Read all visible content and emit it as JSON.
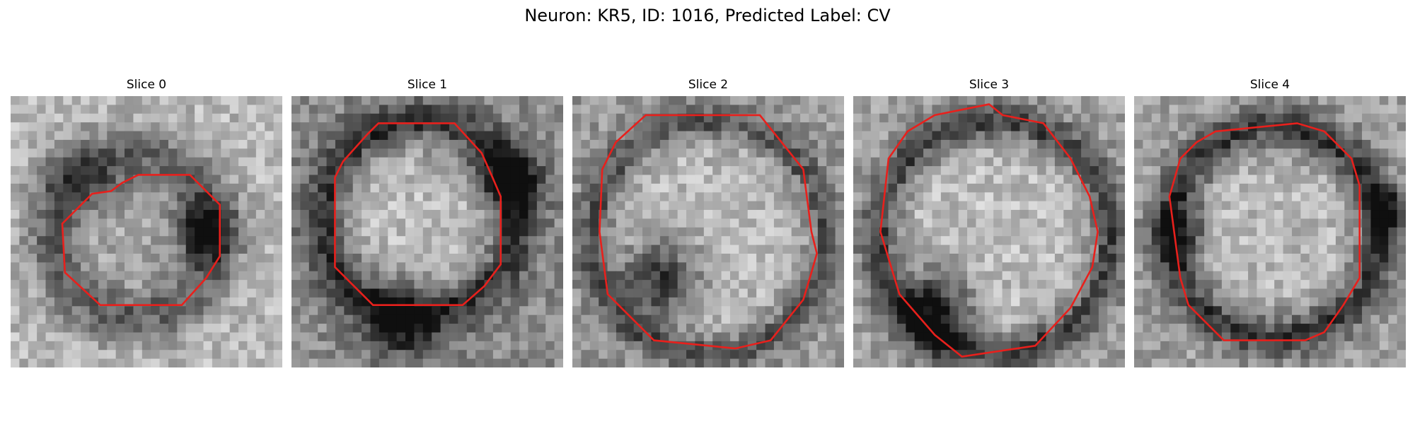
{
  "figure": {
    "title": "Neuron: KR5, ID: 1016, Predicted Label: CV"
  },
  "colors": {
    "contour": "#e8201c",
    "background": "#ffffff"
  },
  "panels": [
    {
      "title": "Slice 0"
    },
    {
      "title": "Slice 1"
    },
    {
      "title": "Slice 2"
    },
    {
      "title": "Slice 3"
    },
    {
      "title": "Slice 4"
    }
  ]
}
